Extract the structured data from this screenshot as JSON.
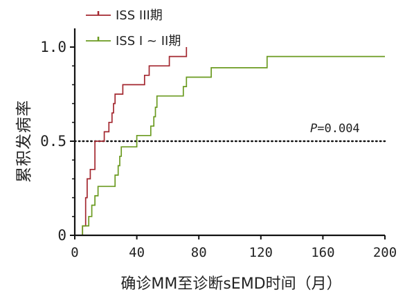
{
  "chart_data": {
    "type": "line",
    "step": true,
    "title": "",
    "xlabel": "确诊MM至诊断sEMD时间（月）",
    "ylabel": "累积发病率",
    "xlim": [
      0,
      200
    ],
    "ylim": [
      0,
      1.0
    ],
    "xticks": [
      "0",
      "40",
      "80",
      "120",
      "160",
      "200"
    ],
    "yticks": [
      "0",
      "0.5",
      "1.0"
    ],
    "annotation": {
      "label": "P=0.004",
      "prefix": "P",
      "value": "=0.004",
      "y": 0.5
    },
    "legend_position": "top-left",
    "series": [
      {
        "name": "ISS III期",
        "color": "#a3272f",
        "points": [
          [
            0,
            0
          ],
          [
            5,
            0
          ],
          [
            5,
            0.05
          ],
          [
            7,
            0.05
          ],
          [
            7,
            0.2
          ],
          [
            8,
            0.2
          ],
          [
            8,
            0.3
          ],
          [
            10,
            0.3
          ],
          [
            10,
            0.35
          ],
          [
            13,
            0.35
          ],
          [
            13,
            0.5
          ],
          [
            19,
            0.5
          ],
          [
            19,
            0.55
          ],
          [
            22,
            0.55
          ],
          [
            22,
            0.6
          ],
          [
            24,
            0.6
          ],
          [
            24,
            0.65
          ],
          [
            25,
            0.65
          ],
          [
            25,
            0.7
          ],
          [
            26,
            0.7
          ],
          [
            26,
            0.75
          ],
          [
            31,
            0.75
          ],
          [
            31,
            0.8
          ],
          [
            45,
            0.8
          ],
          [
            45,
            0.85
          ],
          [
            48,
            0.85
          ],
          [
            48,
            0.9
          ],
          [
            61,
            0.9
          ],
          [
            61,
            0.95
          ],
          [
            72,
            0.95
          ],
          [
            72,
            1.0
          ]
        ]
      },
      {
        "name": "ISS I ~ II期",
        "color": "#6a9a1f",
        "points": [
          [
            0,
            0
          ],
          [
            5,
            0
          ],
          [
            5,
            0.05
          ],
          [
            9,
            0.05
          ],
          [
            9,
            0.1
          ],
          [
            11,
            0.1
          ],
          [
            11,
            0.16
          ],
          [
            13,
            0.16
          ],
          [
            13,
            0.21
          ],
          [
            15,
            0.21
          ],
          [
            15,
            0.26
          ],
          [
            26,
            0.26
          ],
          [
            26,
            0.32
          ],
          [
            28,
            0.32
          ],
          [
            28,
            0.37
          ],
          [
            29,
            0.37
          ],
          [
            29,
            0.42
          ],
          [
            30,
            0.42
          ],
          [
            30,
            0.47
          ],
          [
            40,
            0.47
          ],
          [
            40,
            0.53
          ],
          [
            49,
            0.53
          ],
          [
            49,
            0.58
          ],
          [
            51,
            0.58
          ],
          [
            51,
            0.63
          ],
          [
            52,
            0.63
          ],
          [
            52,
            0.68
          ],
          [
            53,
            0.68
          ],
          [
            53,
            0.74
          ],
          [
            70,
            0.74
          ],
          [
            70,
            0.79
          ],
          [
            72,
            0.79
          ],
          [
            72,
            0.84
          ],
          [
            88,
            0.84
          ],
          [
            88,
            0.89
          ],
          [
            124,
            0.89
          ],
          [
            124,
            0.95
          ],
          [
            200,
            0.95
          ]
        ]
      }
    ]
  }
}
